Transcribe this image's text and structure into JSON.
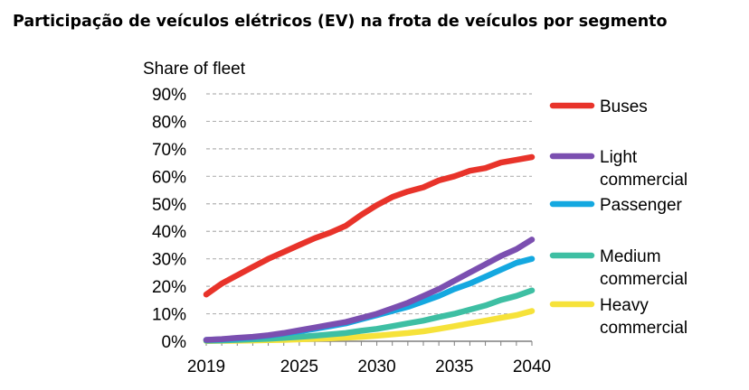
{
  "title": "Participação de veículos elétricos (EV) na frota de veículos por segmento",
  "chart_data": {
    "type": "line",
    "title": "Participação de veículos elétricos (EV) na frota de veículos por segmento",
    "ylabel": "Share of fleet",
    "xlabel": "",
    "xlim": [
      2019,
      2040
    ],
    "ylim": [
      0,
      90
    ],
    "x_ticks": [
      "2019",
      "2025",
      "2030",
      "2035",
      "2040"
    ],
    "y_ticks": [
      "0%",
      "10%",
      "20%",
      "30%",
      "40%",
      "50%",
      "60%",
      "70%",
      "80%",
      "90%"
    ],
    "grid": "horizontal dashed",
    "legend_position": "right",
    "x": [
      2019,
      2020,
      2021,
      2022,
      2023,
      2024,
      2025,
      2026,
      2027,
      2028,
      2029,
      2030,
      2031,
      2032,
      2033,
      2034,
      2035,
      2036,
      2037,
      2038,
      2039,
      2040
    ],
    "series": [
      {
        "name": "Buses",
        "color": "#e8332a",
        "values": [
          17,
          21,
          24,
          27,
          30,
          32.5,
          35,
          37.5,
          39.5,
          42,
          46,
          49.5,
          52.5,
          54.5,
          56,
          58.5,
          60,
          62,
          63,
          65,
          66,
          67
        ]
      },
      {
        "name": "Light commercial",
        "color": "#7b4fb0",
        "values": [
          0.5,
          0.8,
          1.2,
          1.6,
          2.2,
          3,
          4,
          5,
          6,
          7,
          8.5,
          10,
          12,
          14,
          16.5,
          19,
          22,
          25,
          28,
          31,
          33.5,
          37
        ]
      },
      {
        "name": "Passenger",
        "color": "#14a8e0",
        "values": [
          0.5,
          0.7,
          1,
          1.4,
          2,
          2.8,
          3.6,
          4.5,
          5.5,
          6.5,
          8,
          9.5,
          11,
          12.5,
          14.5,
          16.5,
          19,
          21,
          23.5,
          26,
          28.5,
          30
        ]
      },
      {
        "name": "Medium commercial",
        "color": "#3ebfa3",
        "values": [
          0.2,
          0.3,
          0.5,
          0.7,
          0.9,
          1.2,
          1.6,
          2,
          2.5,
          3,
          3.8,
          4.5,
          5.5,
          6.5,
          7.5,
          8.8,
          10,
          11.5,
          13,
          15,
          16.5,
          18.5
        ]
      },
      {
        "name": "Heavy commercial",
        "color": "#f6e23a",
        "values": [
          0.1,
          0.15,
          0.2,
          0.3,
          0.4,
          0.5,
          0.7,
          0.9,
          1.1,
          1.3,
          1.6,
          2,
          2.5,
          3,
          3.6,
          4.5,
          5.5,
          6.5,
          7.5,
          8.5,
          9.5,
          11
        ]
      }
    ],
    "legend_labels": [
      [
        "Buses"
      ],
      [
        "Light",
        "commercial"
      ],
      [
        "Passenger"
      ],
      [
        "Medium",
        "commercial"
      ],
      [
        "Heavy",
        "commercial"
      ]
    ]
  }
}
